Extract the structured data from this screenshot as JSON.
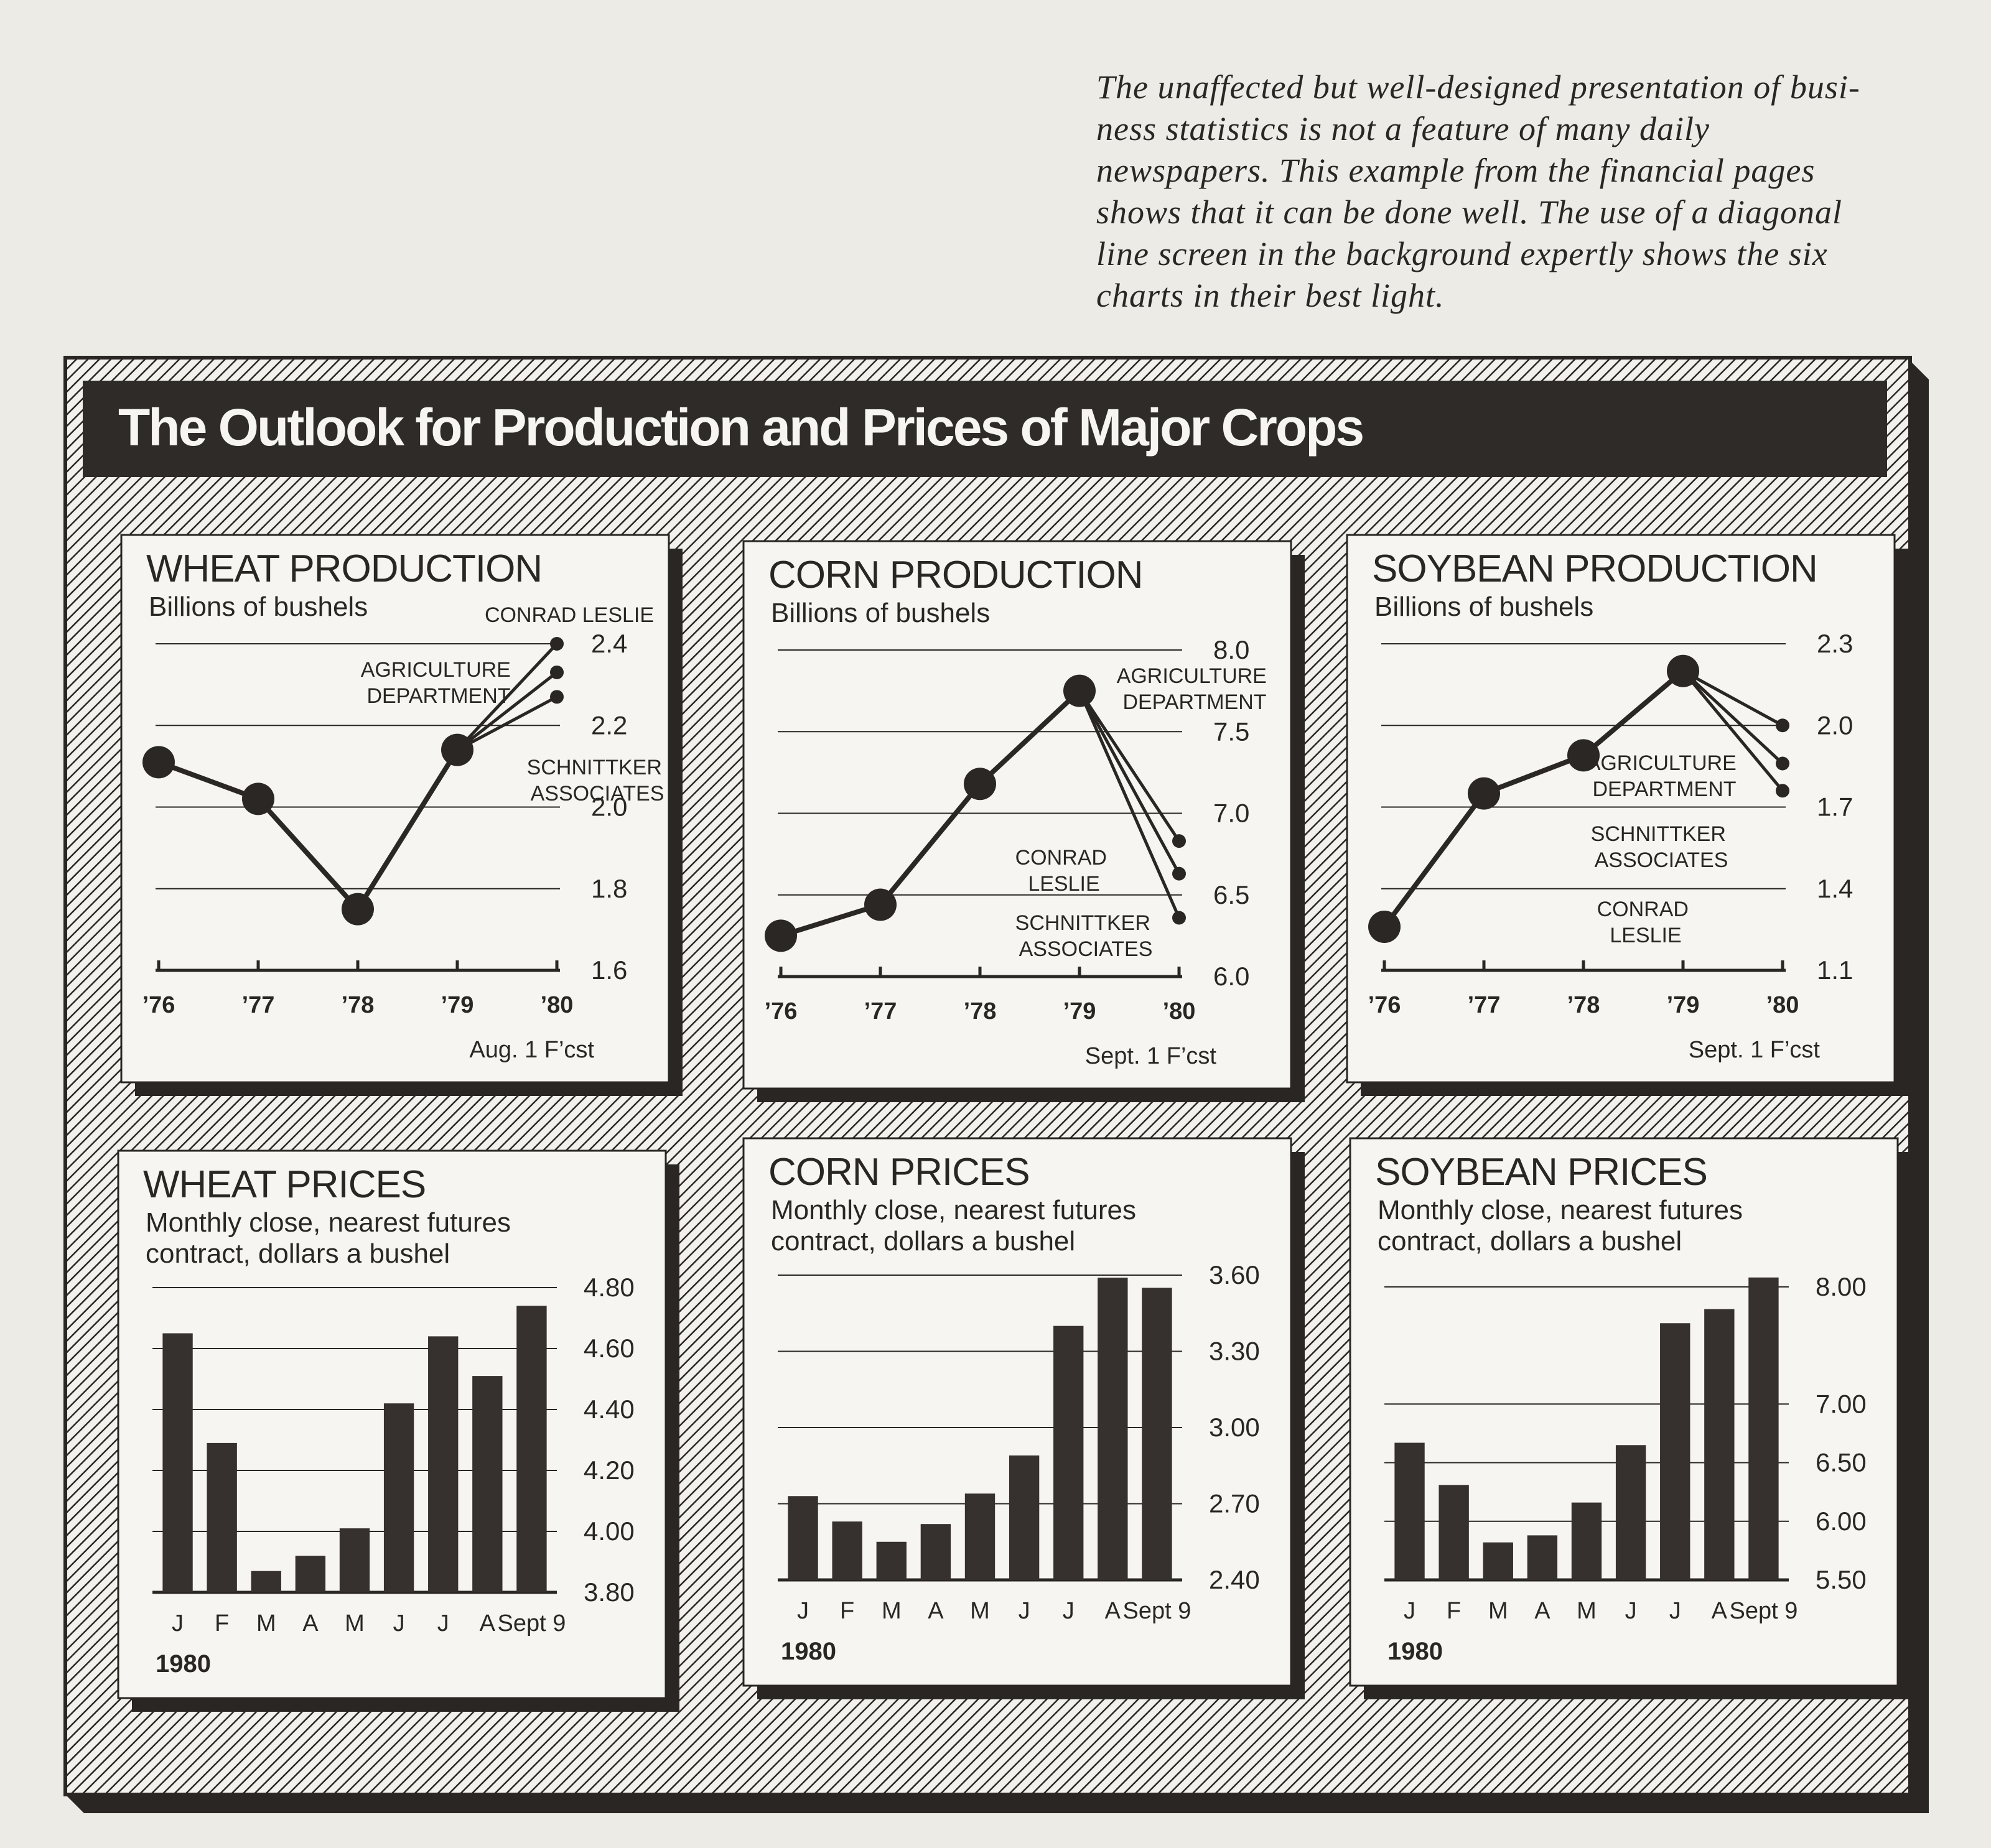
{
  "caption": [
    "The unaffected but well-designed presentation of busi-",
    "ness statistics is not a feature of many daily",
    "newspapers. This example from the financial pages",
    "shows that it can be done well. The use of a diagonal",
    "line screen in the background expertly shows the six",
    "charts in their best light."
  ],
  "title": "The Outlook for Production and Prices of Major Crops",
  "chart_data": [
    {
      "type": "line",
      "title": "WHEAT PRODUCTION",
      "subtitle": [
        "Billions of bushels"
      ],
      "categories": [
        "’76",
        "’77",
        "’78",
        "’79",
        "’80"
      ],
      "values": [
        2.11,
        2.02,
        1.75,
        2.14,
        null
      ],
      "forecasts": [
        {
          "name": "CONRAD LESLIE",
          "value": 2.4
        },
        {
          "name": "AGRICULTURE DEPARTMENT",
          "value": 2.33
        },
        {
          "name": "SCHNITTKER ASSOCIATES",
          "value": 2.27
        }
      ],
      "note": "Aug. 1 F’cst",
      "ylim": [
        1.6,
        2.4
      ],
      "yticks": [
        1.6,
        1.8,
        {
          "value": 2.0,
          "label": "2.0"
        },
        2.2,
        2.4
      ],
      "color": "#2b2725"
    },
    {
      "type": "line",
      "title": "CORN PRODUCTION",
      "subtitle": [
        "Billions of bushels"
      ],
      "categories": [
        "’76",
        "’77",
        "’78",
        "’79",
        "’80"
      ],
      "values": [
        6.25,
        6.44,
        7.18,
        7.75,
        null
      ],
      "forecasts": [
        {
          "name": "AGRICULTURE DEPARTMENT",
          "value": 6.83
        },
        {
          "name": "CONRAD LESLIE",
          "value": 6.63
        },
        {
          "name": "SCHNITTKER ASSOCIATES",
          "value": 6.36
        }
      ],
      "note": "Sept. 1 F’cst",
      "ylim": [
        6.0,
        8.0
      ],
      "yticks": [
        {
          "value": 6.0,
          "label": "6.0"
        },
        6.5,
        {
          "value": 7.0,
          "label": "7.0"
        },
        7.5,
        {
          "value": 8.0,
          "label": "8.0"
        }
      ],
      "color": "#2b2725"
    },
    {
      "type": "line",
      "title": "SOYBEAN PRODUCTION",
      "subtitle": [
        "Billions of bushels"
      ],
      "categories": [
        "’76",
        "’77",
        "’78",
        "’79",
        "’80"
      ],
      "values": [
        1.26,
        1.75,
        1.89,
        2.2,
        null
      ],
      "forecasts": [
        {
          "name": "AGRICULTURE DEPARTMENT",
          "value": 2.0
        },
        {
          "name": "SCHNITTKER ASSOCIATES",
          "value": 1.86
        },
        {
          "name": "CONRAD LESLIE",
          "value": 1.76
        }
      ],
      "note": "Sept. 1 F’cst",
      "ylim": [
        1.1,
        2.3
      ],
      "yticks": [
        1.1,
        1.4,
        1.7,
        {
          "value": 2.0,
          "label": "2.0"
        },
        2.3
      ],
      "color": "#2b2725"
    },
    {
      "type": "bar",
      "title": "WHEAT PRICES",
      "subtitle": [
        "Monthly close, nearest futures",
        "contract, dollars a bushel"
      ],
      "categories": [
        "J",
        "F",
        "M",
        "A",
        "M",
        "J",
        "J",
        "A",
        "Sept 9"
      ],
      "year": "1980",
      "values": [
        4.65,
        4.29,
        3.87,
        3.92,
        4.01,
        4.42,
        4.64,
        4.51,
        4.74
      ],
      "ylim": [
        3.8,
        4.8
      ],
      "yticks": [
        {
          "value": 3.8,
          "label": "3.80"
        },
        {
          "value": 4.0,
          "label": "4.00"
        },
        {
          "value": 4.2,
          "label": "4.20"
        },
        {
          "value": 4.4,
          "label": "4.40"
        },
        {
          "value": 4.6,
          "label": "4.60"
        },
        {
          "value": 4.8,
          "label": "4.80"
        }
      ],
      "color": "#36312e"
    },
    {
      "type": "bar",
      "title": "CORN PRICES",
      "subtitle": [
        "Monthly close, nearest futures",
        "contract, dollars a bushel"
      ],
      "categories": [
        "J",
        "F",
        "M",
        "A",
        "M",
        "J",
        "J",
        "A",
        "Sept 9"
      ],
      "year": "1980",
      "values": [
        2.73,
        2.63,
        2.55,
        2.62,
        2.74,
        2.89,
        3.4,
        3.59,
        3.55
      ],
      "ylim": [
        2.4,
        3.6
      ],
      "yticks": [
        {
          "value": 2.4,
          "label": "2.40"
        },
        {
          "value": 2.7,
          "label": "2.70"
        },
        {
          "value": 3.0,
          "label": "3.00"
        },
        {
          "value": 3.3,
          "label": "3.30"
        },
        {
          "value": 3.6,
          "label": "3.60"
        }
      ],
      "color": "#36312e"
    },
    {
      "type": "bar",
      "title": "SOYBEAN PRICES",
      "subtitle": [
        "Monthly close, nearest futures",
        "contract, dollars a bushel"
      ],
      "categories": [
        "J",
        "F",
        "M",
        "A",
        "M",
        "J",
        "J",
        "A",
        "Sept 9"
      ],
      "year": "1980",
      "values": [
        6.67,
        6.31,
        5.82,
        5.88,
        6.16,
        6.65,
        7.69,
        7.81,
        8.08
      ],
      "ylim": [
        5.5,
        8.1
      ],
      "yticks": [
        {
          "value": 5.5,
          "label": "5.50"
        },
        {
          "value": 6.0,
          "label": "6.00"
        },
        {
          "value": 6.5,
          "label": "6.50"
        },
        {
          "value": 7.0,
          "label": "7.00"
        },
        {
          "value": 8.0,
          "label": "8.00"
        }
      ],
      "color": "#36312e"
    }
  ]
}
